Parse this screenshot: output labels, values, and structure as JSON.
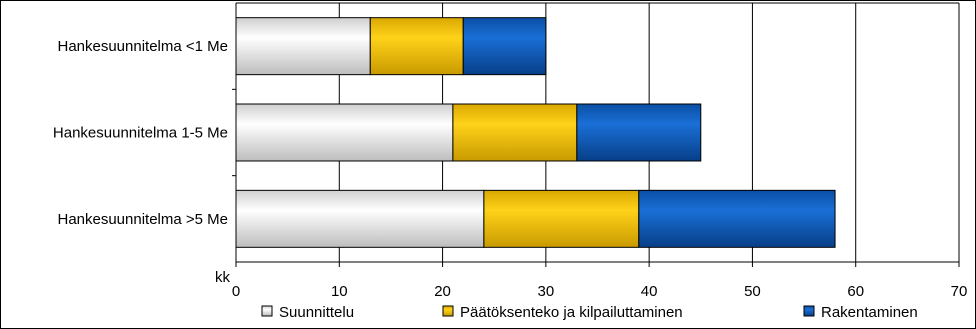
{
  "chart_data": {
    "type": "bar",
    "orientation": "horizontal",
    "stacked": true,
    "categories": [
      "Hankesuunnitelma <1 Me",
      "Hankesuunnitelma 1-5 Me",
      "Hankesuunnitelma >5 Me"
    ],
    "series": [
      {
        "name": "Suunnittelu",
        "values": [
          13,
          21,
          24
        ],
        "color": "#d9d9d9"
      },
      {
        "name": "Päätöksenteko ja kilpailuttaminen",
        "values": [
          9,
          12,
          15
        ],
        "color": "#f2c200"
      },
      {
        "name": "Rakentaminen",
        "values": [
          8,
          12,
          19
        ],
        "color": "#0b5fc0"
      }
    ],
    "xlabel": "kk",
    "xlim": [
      0,
      70
    ],
    "xticks": [
      "0",
      "10",
      "20",
      "30",
      "40",
      "50",
      "60",
      "70"
    ],
    "grid": true,
    "legend_position": "bottom"
  }
}
